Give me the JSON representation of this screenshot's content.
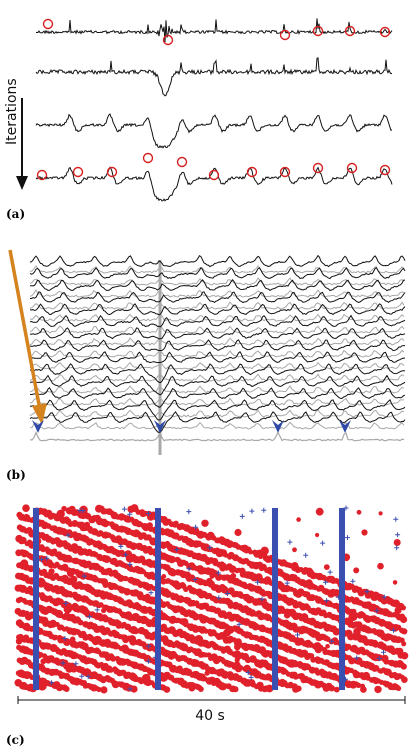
{
  "panels": {
    "a": {
      "label": "(a)",
      "axis_label": "Iterations"
    },
    "b": {
      "label": "(b)"
    },
    "c": {
      "label": "(c)",
      "duration_label": "40 s"
    }
  },
  "colors": {
    "trace": "#111111",
    "peak_marker": "#d62020",
    "gray_trace": "#a8a8a8",
    "arrow": "#d4831e",
    "arrowhead_marker": "#2f49a8",
    "red_dots": "#e0212b",
    "blue_marks": "#3b4fb0"
  }
}
